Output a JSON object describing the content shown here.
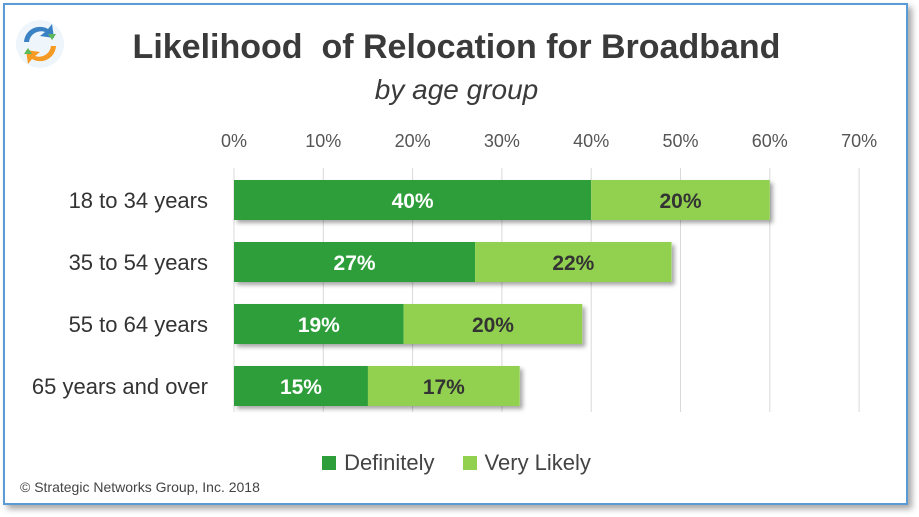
{
  "title": "Likelihood  of Relocation for Broadband",
  "subtitle": "by age group",
  "copyright": "© Strategic Networks Group, Inc. 2018",
  "logo_icon": "recycle-arrows-logo-icon",
  "colors": {
    "definitely": "#2e9e3a",
    "very_likely": "#92d050",
    "frame": "#5b9bd5",
    "grid": "#d9d9d9"
  },
  "chart_data": {
    "type": "bar",
    "orientation": "horizontal",
    "stacked": true,
    "title": "Likelihood  of Relocation for Broadband",
    "subtitle": "by age group",
    "categories": [
      "18 to 34 years",
      "35 to 54 years",
      "55 to 64 years",
      "65 years and over"
    ],
    "series": [
      {
        "name": "Definitely",
        "values": [
          40,
          27,
          19,
          15
        ],
        "labels": [
          "40%",
          "27%",
          "19%",
          "15%"
        ]
      },
      {
        "name": "Very Likely",
        "values": [
          20,
          22,
          20,
          17
        ],
        "labels": [
          "20%",
          "22%",
          "20%",
          "17%"
        ]
      }
    ],
    "xlim": [
      0,
      70
    ],
    "xticks": [
      "0%",
      "10%",
      "20%",
      "30%",
      "40%",
      "50%",
      "60%",
      "70%"
    ],
    "grid": true,
    "legend": "bottom"
  }
}
